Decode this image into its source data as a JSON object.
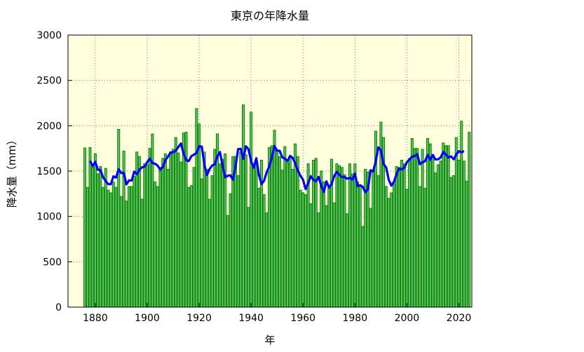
{
  "chart_data": {
    "type": "bar",
    "title": "東京の年降水量",
    "xlabel": "年",
    "ylabel": "降水量（mm）",
    "xlim": [
      1869.5,
      2025
    ],
    "ylim": [
      0,
      3000
    ],
    "xticks": [
      1880,
      1900,
      1920,
      1940,
      1960,
      1980,
      2000,
      2020
    ],
    "yticks": [
      0,
      500,
      1000,
      1500,
      2000,
      2500,
      3000
    ],
    "grid": true,
    "background_color": "#ffffdd",
    "bar_color": "#66bb66",
    "bar_edge_color": "#008800",
    "line_color": "#0000ff",
    "moving_average_window": 5,
    "x_start": 1876,
    "values": [
      1755,
      1320,
      1760,
      1540,
      1690,
      1470,
      1550,
      1320,
      1530,
      1290,
      1260,
      1380,
      1320,
      1960,
      1220,
      1720,
      1170,
      1330,
      1330,
      1440,
      1710,
      1660,
      1190,
      1580,
      1570,
      1750,
      1910,
      1380,
      1330,
      1540,
      1640,
      1690,
      1520,
      1710,
      1740,
      1870,
      1700,
      1600,
      1920,
      1930,
      1320,
      1340,
      1540,
      2190,
      2020,
      1415,
      1710,
      1520,
      1190,
      1450,
      1740,
      1910,
      1580,
      1630,
      1690,
      1010,
      1250,
      1660,
      1660,
      1450,
      1710,
      2230,
      1680,
      1100,
      2150,
      1550,
      1580,
      1310,
      1620,
      1240,
      1040,
      1760,
      1780,
      1950,
      1730,
      1660,
      1510,
      1770,
      1590,
      1660,
      1520,
      1800,
      1660,
      1290,
      1260,
      1240,
      1580,
      1140,
      1620,
      1640,
      1040,
      1500,
      1380,
      1120,
      1310,
      1630,
      1150,
      1580,
      1560,
      1540,
      1460,
      1030,
      1580,
      1470,
      1580,
      1380,
      1350,
      890,
      1520,
      1490,
      1090,
      1510,
      1940,
      1450,
      2040,
      1870,
      1330,
      1200,
      1260,
      1360,
      1550,
      1540,
      1620,
      1580,
      1300,
      1640,
      1860,
      1750,
      1750,
      1330,
      1740,
      1310,
      1860,
      1800,
      1680,
      1480,
      1570,
      1610,
      1810,
      1780,
      1780,
      1430,
      1450,
      1870,
      1620,
      2050,
      1610,
      1390,
      1930
    ]
  }
}
